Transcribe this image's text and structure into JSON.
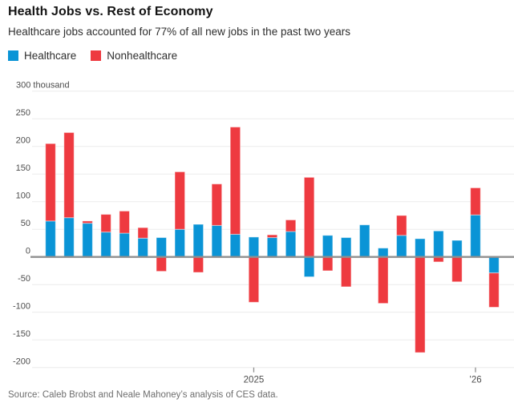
{
  "header": {
    "title": "Health Jobs vs. Rest of Economy",
    "subtitle": "Healthcare jobs accounted for 77% of all new jobs in the past two years"
  },
  "legend": [
    {
      "label": "Healthcare",
      "color": "#0a94d6"
    },
    {
      "label": "Nonhealthcare",
      "color": "#ee3a40"
    }
  ],
  "source": "Source: Caleb Brobst and Neale Mahoney’s analysis of CES data.",
  "chart_data": {
    "type": "bar",
    "stacked": true,
    "title": "Health Jobs vs. Rest of Economy",
    "subtitle": "Healthcare jobs accounted for 77% of all new jobs in the past two years",
    "unit": "thousand",
    "y_axis": {
      "min": -200,
      "max": 300,
      "step": 50,
      "top_tick_label": "300 thousand",
      "grid": true
    },
    "x_ticks": [
      {
        "bar_index": 11,
        "label": "2025"
      },
      {
        "bar_index": 23,
        "label": "’26"
      }
    ],
    "series": [
      {
        "name": "Healthcare",
        "color": "#0a94d6",
        "values": [
          65,
          71,
          61,
          45,
          43,
          34,
          35,
          50,
          59,
          57,
          41,
          36,
          35,
          46,
          -36,
          39,
          35,
          58,
          16,
          39,
          33,
          47,
          30,
          76,
          -29
        ]
      },
      {
        "name": "Nonhealthcare",
        "color": "#ee3a40",
        "values": [
          140,
          154,
          4,
          32,
          40,
          19,
          -26,
          104,
          -28,
          75,
          194,
          -82,
          5,
          21,
          144,
          -25,
          -54,
          0,
          -84,
          36,
          -173,
          -9,
          -45,
          49,
          -62
        ]
      }
    ],
    "colors": {
      "axis_line": "#8f8f8f",
      "gridline": "#ebebeb",
      "axis_text": "#4d4d4d"
    }
  }
}
